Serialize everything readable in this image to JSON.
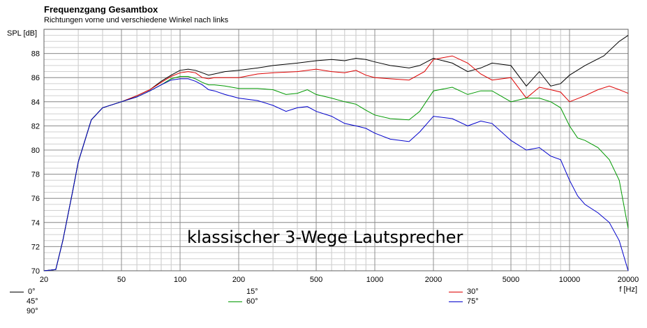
{
  "chart_data": {
    "type": "line",
    "title": "Frequenzgang Gesamtbox",
    "subtitle": "Richtungen vorne und verschiedene Winkel nach links",
    "ylabel": "SPL [dB]",
    "xlabel": "f [Hz]",
    "xscale": "log",
    "xlim": [
      20,
      20000
    ],
    "ylim": [
      70,
      90
    ],
    "x_ticks": [
      20,
      50,
      100,
      200,
      500,
      1000,
      2000,
      5000,
      10000,
      20000
    ],
    "x_tick_labels": [
      "20",
      "50",
      "100",
      "200",
      "500",
      "1000",
      "2000",
      "5000",
      "10000",
      "20000"
    ],
    "y_ticks": [
      70,
      72,
      74,
      76,
      78,
      80,
      82,
      84,
      86,
      88
    ],
    "y_tick_labels": [
      "70",
      "72",
      "74",
      "76",
      "78",
      "80",
      "82",
      "84",
      "86",
      "88"
    ],
    "grid": true,
    "annotation": "klassischer 3-Wege Lautsprecher",
    "series": [
      {
        "name": "0°",
        "color": "#000000",
        "points": [
          [
            20,
            70
          ],
          [
            23,
            70.1
          ],
          [
            25,
            72.5
          ],
          [
            28,
            76.5
          ],
          [
            30,
            79
          ],
          [
            35,
            82.5
          ],
          [
            40,
            83.5
          ],
          [
            50,
            84
          ],
          [
            60,
            84.5
          ],
          [
            70,
            85
          ],
          [
            80,
            85.7
          ],
          [
            90,
            86.2
          ],
          [
            100,
            86.6
          ],
          [
            110,
            86.7
          ],
          [
            120,
            86.6
          ],
          [
            130,
            86.4
          ],
          [
            140,
            86.2
          ],
          [
            150,
            86.3
          ],
          [
            170,
            86.5
          ],
          [
            200,
            86.6
          ],
          [
            250,
            86.8
          ],
          [
            300,
            87
          ],
          [
            400,
            87.2
          ],
          [
            500,
            87.4
          ],
          [
            600,
            87.5
          ],
          [
            700,
            87.4
          ],
          [
            800,
            87.6
          ],
          [
            900,
            87.5
          ],
          [
            1000,
            87.3
          ],
          [
            1200,
            87
          ],
          [
            1500,
            86.8
          ],
          [
            1700,
            87
          ],
          [
            2000,
            87.6
          ],
          [
            2500,
            87.2
          ],
          [
            3000,
            86.5
          ],
          [
            3500,
            86.8
          ],
          [
            4000,
            87.2
          ],
          [
            5000,
            87
          ],
          [
            6000,
            85.3
          ],
          [
            7000,
            86.5
          ],
          [
            8000,
            85.3
          ],
          [
            9000,
            85.5
          ],
          [
            10000,
            86.2
          ],
          [
            12000,
            87
          ],
          [
            15000,
            87.8
          ],
          [
            18000,
            89
          ],
          [
            20000,
            89.5
          ]
        ]
      },
      {
        "name": "30°",
        "color": "#dd0000",
        "points": [
          [
            20,
            70
          ],
          [
            23,
            70.1
          ],
          [
            25,
            72.5
          ],
          [
            28,
            76.5
          ],
          [
            30,
            79
          ],
          [
            35,
            82.5
          ],
          [
            40,
            83.5
          ],
          [
            50,
            84
          ],
          [
            60,
            84.5
          ],
          [
            70,
            85
          ],
          [
            80,
            85.6
          ],
          [
            90,
            86.1
          ],
          [
            100,
            86.4
          ],
          [
            110,
            86.5
          ],
          [
            120,
            86.4
          ],
          [
            130,
            86
          ],
          [
            140,
            85.9
          ],
          [
            150,
            86
          ],
          [
            170,
            86
          ],
          [
            200,
            86
          ],
          [
            250,
            86.3
          ],
          [
            300,
            86.4
          ],
          [
            400,
            86.5
          ],
          [
            500,
            86.7
          ],
          [
            600,
            86.5
          ],
          [
            700,
            86.4
          ],
          [
            800,
            86.6
          ],
          [
            900,
            86.2
          ],
          [
            1000,
            86
          ],
          [
            1200,
            85.9
          ],
          [
            1500,
            85.8
          ],
          [
            1800,
            86.5
          ],
          [
            2000,
            87.5
          ],
          [
            2500,
            87.8
          ],
          [
            3000,
            87.2
          ],
          [
            3500,
            86.3
          ],
          [
            4000,
            85.8
          ],
          [
            5000,
            86
          ],
          [
            6000,
            84.3
          ],
          [
            7000,
            85.2
          ],
          [
            8000,
            85
          ],
          [
            9000,
            84.8
          ],
          [
            10000,
            84
          ],
          [
            12000,
            84.5
          ],
          [
            14000,
            85
          ],
          [
            16000,
            85.3
          ],
          [
            18000,
            85
          ],
          [
            20000,
            84.7
          ]
        ]
      },
      {
        "name": "60°",
        "color": "#009900",
        "points": [
          [
            20,
            70
          ],
          [
            23,
            70.1
          ],
          [
            25,
            72.5
          ],
          [
            28,
            76.5
          ],
          [
            30,
            79
          ],
          [
            35,
            82.5
          ],
          [
            40,
            83.5
          ],
          [
            50,
            84
          ],
          [
            60,
            84.4
          ],
          [
            70,
            84.9
          ],
          [
            80,
            85.4
          ],
          [
            90,
            85.9
          ],
          [
            100,
            86.1
          ],
          [
            110,
            86.1
          ],
          [
            120,
            85.9
          ],
          [
            130,
            85.6
          ],
          [
            140,
            85.4
          ],
          [
            150,
            85.4
          ],
          [
            170,
            85.3
          ],
          [
            200,
            85.1
          ],
          [
            250,
            85.1
          ],
          [
            300,
            85
          ],
          [
            350,
            84.6
          ],
          [
            400,
            84.7
          ],
          [
            450,
            85
          ],
          [
            500,
            84.6
          ],
          [
            600,
            84.3
          ],
          [
            700,
            84
          ],
          [
            800,
            83.8
          ],
          [
            900,
            83.3
          ],
          [
            1000,
            82.9
          ],
          [
            1200,
            82.6
          ],
          [
            1500,
            82.5
          ],
          [
            1700,
            83.2
          ],
          [
            2000,
            84.9
          ],
          [
            2500,
            85.2
          ],
          [
            3000,
            84.6
          ],
          [
            3500,
            84.9
          ],
          [
            4000,
            84.9
          ],
          [
            5000,
            84
          ],
          [
            6000,
            84.3
          ],
          [
            7000,
            84.3
          ],
          [
            8000,
            84
          ],
          [
            9000,
            83.5
          ],
          [
            10000,
            82
          ],
          [
            11000,
            81
          ],
          [
            12000,
            80.8
          ],
          [
            14000,
            80.2
          ],
          [
            16000,
            79.2
          ],
          [
            18000,
            77.5
          ],
          [
            20000,
            73.5
          ]
        ]
      },
      {
        "name": "75°",
        "color": "#0000cc",
        "points": [
          [
            20,
            70
          ],
          [
            23,
            70.1
          ],
          [
            25,
            72.5
          ],
          [
            28,
            76.5
          ],
          [
            30,
            79
          ],
          [
            35,
            82.5
          ],
          [
            40,
            83.5
          ],
          [
            50,
            84
          ],
          [
            60,
            84.4
          ],
          [
            70,
            84.9
          ],
          [
            80,
            85.4
          ],
          [
            90,
            85.8
          ],
          [
            100,
            85.9
          ],
          [
            110,
            85.9
          ],
          [
            120,
            85.7
          ],
          [
            130,
            85.4
          ],
          [
            140,
            85
          ],
          [
            150,
            84.9
          ],
          [
            170,
            84.6
          ],
          [
            200,
            84.3
          ],
          [
            250,
            84.1
          ],
          [
            300,
            83.7
          ],
          [
            350,
            83.2
          ],
          [
            400,
            83.5
          ],
          [
            450,
            83.6
          ],
          [
            500,
            83.2
          ],
          [
            600,
            82.8
          ],
          [
            700,
            82.2
          ],
          [
            800,
            82
          ],
          [
            900,
            81.8
          ],
          [
            1000,
            81.4
          ],
          [
            1200,
            80.9
          ],
          [
            1500,
            80.7
          ],
          [
            1700,
            81.5
          ],
          [
            2000,
            82.8
          ],
          [
            2500,
            82.6
          ],
          [
            3000,
            82
          ],
          [
            3500,
            82.4
          ],
          [
            4000,
            82.2
          ],
          [
            5000,
            80.8
          ],
          [
            6000,
            80
          ],
          [
            7000,
            80.2
          ],
          [
            8000,
            79.5
          ],
          [
            9000,
            79.2
          ],
          [
            10000,
            77.5
          ],
          [
            11000,
            76.2
          ],
          [
            12000,
            75.5
          ],
          [
            14000,
            74.8
          ],
          [
            16000,
            74
          ],
          [
            18000,
            72.5
          ],
          [
            20000,
            70
          ]
        ]
      }
    ],
    "legend": [
      {
        "label": "0°",
        "color": "#000000"
      },
      {
        "label": "45°",
        "color": ""
      },
      {
        "label": "90°",
        "color": ""
      },
      {
        "label": "15°",
        "color": ""
      },
      {
        "label": "60°",
        "color": "#009900"
      },
      {
        "label": "30°",
        "color": "#dd0000"
      },
      {
        "label": "75°",
        "color": "#0000cc"
      }
    ]
  }
}
